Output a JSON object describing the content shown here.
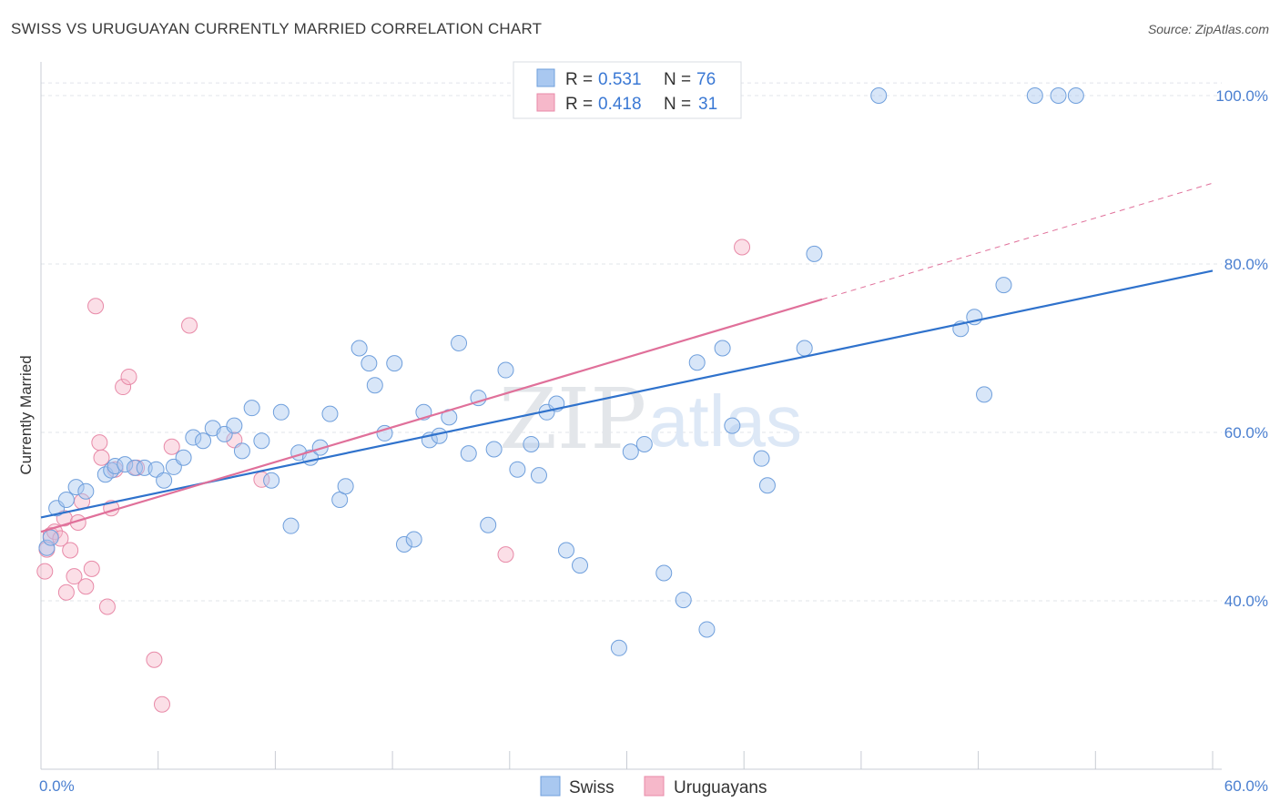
{
  "header": {
    "title": "SWISS VS URUGUAYAN CURRENTLY MARRIED CORRELATION CHART",
    "source": "Source: ZipAtlas.com"
  },
  "colors": {
    "swiss_fill": "#a9c8f0",
    "swiss_stroke": "#6f9fdc",
    "swiss_line": "#2f72cc",
    "uru_fill": "#f6b8ca",
    "uru_stroke": "#e88aa8",
    "uru_line": "#e0709a",
    "tick_text": "#4a7fd0",
    "grid": "#e1e4ea"
  },
  "legend": {
    "swiss": {
      "r_label": "R =",
      "r_value": "0.531",
      "n_label": "N =",
      "n_value": "76"
    },
    "uru": {
      "r_label": "R =",
      "r_value": "0.418",
      "n_label": "N =",
      "n_value": "31"
    }
  },
  "watermark": {
    "part1": "ZIP",
    "part2": "atlas"
  },
  "chart_data": {
    "type": "scatter",
    "title": "SWISS VS URUGUAYAN CURRENTLY MARRIED CORRELATION CHART",
    "xlabel": "",
    "ylabel": "Currently Married",
    "xlim": [
      0,
      60
    ],
    "ylim": [
      20,
      104
    ],
    "x_tick_labels": [
      "0.0%",
      "60.0%"
    ],
    "y_ticks": [
      40,
      60,
      80,
      100
    ],
    "y_tick_labels": [
      "40.0%",
      "60.0%",
      "80.0%",
      "100.0%"
    ],
    "grid": true,
    "legend_position": "top-center",
    "series": [
      {
        "name": "Swiss",
        "R": 0.531,
        "N": 76,
        "trend": {
          "x": [
            0,
            60
          ],
          "y": [
            49.9,
            79.2
          ],
          "dashed_extension": false
        },
        "points": [
          [
            0.3,
            46.3
          ],
          [
            0.5,
            47.5
          ],
          [
            0.8,
            51.0
          ],
          [
            1.3,
            52.0
          ],
          [
            1.8,
            53.5
          ],
          [
            2.3,
            53.0
          ],
          [
            3.3,
            55.0
          ],
          [
            3.6,
            55.5
          ],
          [
            3.8,
            56.0
          ],
          [
            4.3,
            56.2
          ],
          [
            4.8,
            55.8
          ],
          [
            5.3,
            55.8
          ],
          [
            5.9,
            55.6
          ],
          [
            6.3,
            54.3
          ],
          [
            6.8,
            55.9
          ],
          [
            7.3,
            57.0
          ],
          [
            7.8,
            59.4
          ],
          [
            8.3,
            59.0
          ],
          [
            8.8,
            60.5
          ],
          [
            9.4,
            59.8
          ],
          [
            9.9,
            60.8
          ],
          [
            10.3,
            57.8
          ],
          [
            10.8,
            62.9
          ],
          [
            11.3,
            59.0
          ],
          [
            11.8,
            54.3
          ],
          [
            12.3,
            62.4
          ],
          [
            12.8,
            48.9
          ],
          [
            13.2,
            57.6
          ],
          [
            13.8,
            57.0
          ],
          [
            14.3,
            58.2
          ],
          [
            14.8,
            62.2
          ],
          [
            15.3,
            52.0
          ],
          [
            15.6,
            53.6
          ],
          [
            16.3,
            70.0
          ],
          [
            16.8,
            68.2
          ],
          [
            17.1,
            65.6
          ],
          [
            17.6,
            59.9
          ],
          [
            18.1,
            68.2
          ],
          [
            18.6,
            46.7
          ],
          [
            19.1,
            47.3
          ],
          [
            19.6,
            62.4
          ],
          [
            19.9,
            59.1
          ],
          [
            20.4,
            59.6
          ],
          [
            20.9,
            61.8
          ],
          [
            21.4,
            70.6
          ],
          [
            21.9,
            57.5
          ],
          [
            22.4,
            64.1
          ],
          [
            22.9,
            49.0
          ],
          [
            23.2,
            58.0
          ],
          [
            23.8,
            67.4
          ],
          [
            24.4,
            55.6
          ],
          [
            25.1,
            58.6
          ],
          [
            25.5,
            54.9
          ],
          [
            25.9,
            62.4
          ],
          [
            26.4,
            63.4
          ],
          [
            26.9,
            46.0
          ],
          [
            27.6,
            44.2
          ],
          [
            29.6,
            34.4
          ],
          [
            30.2,
            57.7
          ],
          [
            30.9,
            58.6
          ],
          [
            31.9,
            43.3
          ],
          [
            32.9,
            40.1
          ],
          [
            33.6,
            68.3
          ],
          [
            34.1,
            36.6
          ],
          [
            34.9,
            70.0
          ],
          [
            35.4,
            60.8
          ],
          [
            36.9,
            56.9
          ],
          [
            37.2,
            53.7
          ],
          [
            39.1,
            70.0
          ],
          [
            39.6,
            81.2
          ],
          [
            42.9,
            100.0
          ],
          [
            47.1,
            72.3
          ],
          [
            47.8,
            73.7
          ],
          [
            48.3,
            64.5
          ],
          [
            49.3,
            77.5
          ],
          [
            50.9,
            100.0
          ],
          [
            52.1,
            100.0
          ],
          [
            53.0,
            100.0
          ]
        ]
      },
      {
        "name": "Uruguayans",
        "R": 0.418,
        "N": 31,
        "trend": {
          "x": [
            0,
            40
          ],
          "y": [
            48.2,
            75.8
          ],
          "dashed_to": [
            60,
            89.6
          ]
        },
        "points": [
          [
            0.2,
            43.5
          ],
          [
            0.3,
            46.1
          ],
          [
            0.5,
            47.8
          ],
          [
            0.7,
            48.2
          ],
          [
            1.0,
            47.4
          ],
          [
            1.2,
            49.8
          ],
          [
            1.3,
            41.0
          ],
          [
            1.5,
            46.0
          ],
          [
            1.7,
            42.9
          ],
          [
            1.9,
            49.3
          ],
          [
            2.1,
            51.8
          ],
          [
            2.3,
            41.7
          ],
          [
            2.6,
            43.8
          ],
          [
            2.8,
            75.0
          ],
          [
            3.0,
            58.8
          ],
          [
            3.1,
            57.0
          ],
          [
            3.4,
            39.3
          ],
          [
            3.6,
            51.0
          ],
          [
            3.8,
            55.6
          ],
          [
            4.2,
            65.4
          ],
          [
            4.5,
            66.6
          ],
          [
            4.9,
            55.8
          ],
          [
            5.8,
            33.0
          ],
          [
            6.2,
            27.7
          ],
          [
            6.7,
            58.3
          ],
          [
            7.6,
            72.7
          ],
          [
            9.9,
            59.1
          ],
          [
            11.3,
            54.4
          ],
          [
            23.8,
            45.5
          ],
          [
            35.9,
            82.0
          ]
        ]
      }
    ]
  },
  "bottom_legend": {
    "swiss": "Swiss",
    "uru": "Uruguayans"
  }
}
